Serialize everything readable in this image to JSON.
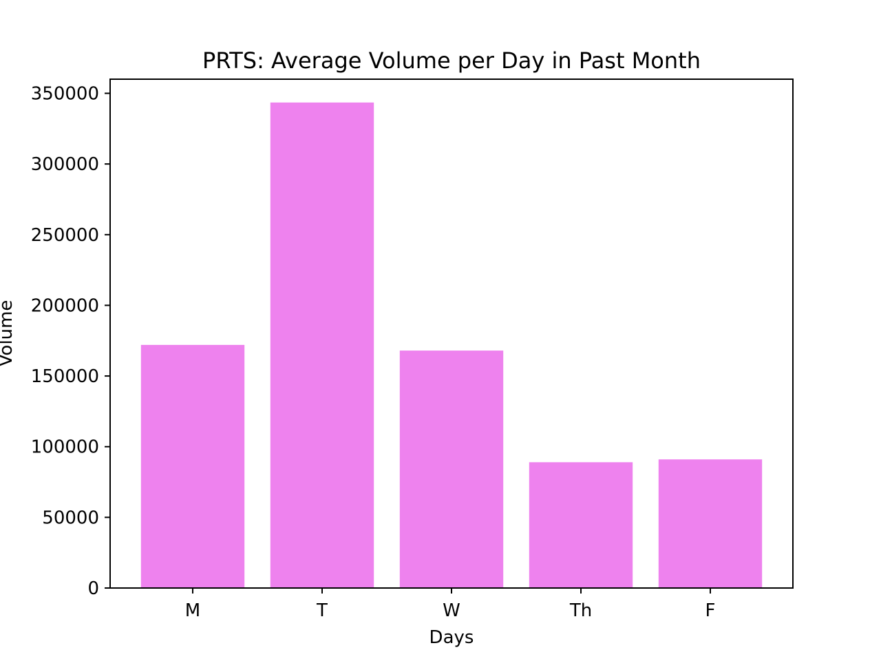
{
  "chart_data": {
    "type": "bar",
    "title": "PRTS: Average Volume per Day in Past Month",
    "xlabel": "Days",
    "ylabel": "Volume",
    "categories": [
      "M",
      "T",
      "W",
      "Th",
      "F"
    ],
    "values": [
      172000,
      343500,
      168000,
      89000,
      91000
    ],
    "ylim": [
      0,
      360000
    ],
    "yticks": [
      0,
      50000,
      100000,
      150000,
      200000,
      250000,
      300000,
      350000
    ],
    "ytick_labels": [
      "0",
      "50000",
      "100000",
      "150000",
      "200000",
      "250000",
      "300000",
      "350000"
    ],
    "bar_color": "#ee82ee",
    "grid": false,
    "legend": "none"
  }
}
